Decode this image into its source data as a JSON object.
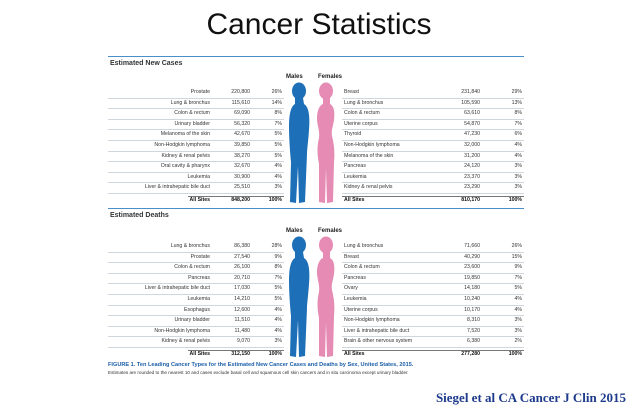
{
  "slide": {
    "title": "Cancer Statistics",
    "citation": "Siegel et al CA Cancer J Clin 2015"
  },
  "colors": {
    "male": "#1d6fb8",
    "female": "#e58bb4",
    "rule": "#4b8fc9",
    "caption": "#1b5ea8"
  },
  "icons": {
    "male_figure": "male-silhouette-icon",
    "female_figure": "female-silhouette-icon"
  },
  "labels": {
    "males": "Males",
    "females": "Females"
  },
  "new_cases": {
    "heading": "Estimated New Cases",
    "males": [
      [
        "Prostate",
        "220,800",
        "26%"
      ],
      [
        "Lung & bronchus",
        "115,610",
        "14%"
      ],
      [
        "Colon & rectum",
        "69,090",
        "8%"
      ],
      [
        "Urinary bladder",
        "56,320",
        "7%"
      ],
      [
        "Melanoma of the skin",
        "42,670",
        "5%"
      ],
      [
        "Non-Hodgkin lymphoma",
        "39,850",
        "5%"
      ],
      [
        "Kidney & renal pelvis",
        "38,270",
        "5%"
      ],
      [
        "Oral cavity & pharynx",
        "32,670",
        "4%"
      ],
      [
        "Leukemia",
        "30,900",
        "4%"
      ],
      [
        "Liver & intrahepatic bile duct",
        "25,510",
        "3%"
      ]
    ],
    "males_total": [
      "All Sites",
      "848,200",
      "100%"
    ],
    "females": [
      [
        "Breast",
        "231,840",
        "29%"
      ],
      [
        "Lung & bronchus",
        "105,590",
        "13%"
      ],
      [
        "Colon & rectum",
        "63,610",
        "8%"
      ],
      [
        "Uterine corpus",
        "54,870",
        "7%"
      ],
      [
        "Thyroid",
        "47,230",
        "6%"
      ],
      [
        "Non-Hodgkin lymphoma",
        "32,000",
        "4%"
      ],
      [
        "Melanoma of the skin",
        "31,200",
        "4%"
      ],
      [
        "Pancreas",
        "24,120",
        "3%"
      ],
      [
        "Leukemia",
        "23,370",
        "3%"
      ],
      [
        "Kidney & renal pelvis",
        "23,290",
        "3%"
      ]
    ],
    "females_total": [
      "All Sites",
      "810,170",
      "100%"
    ]
  },
  "deaths": {
    "heading": "Estimated Deaths",
    "males": [
      [
        "Lung & bronchus",
        "86,380",
        "28%"
      ],
      [
        "Prostate",
        "27,540",
        "9%"
      ],
      [
        "Colon & rectum",
        "26,100",
        "8%"
      ],
      [
        "Pancreas",
        "20,710",
        "7%"
      ],
      [
        "Liver & intrahepatic bile duct",
        "17,030",
        "5%"
      ],
      [
        "Leukemia",
        "14,210",
        "5%"
      ],
      [
        "Esophagus",
        "12,600",
        "4%"
      ],
      [
        "Urinary bladder",
        "11,510",
        "4%"
      ],
      [
        "Non-Hodgkin lymphoma",
        "11,480",
        "4%"
      ],
      [
        "Kidney & renal pelvis",
        "9,070",
        "3%"
      ]
    ],
    "males_total": [
      "All Sites",
      "312,150",
      "100%"
    ],
    "females": [
      [
        "Lung & bronchus",
        "71,660",
        "26%"
      ],
      [
        "Breast",
        "40,290",
        "15%"
      ],
      [
        "Colon & rectum",
        "23,600",
        "9%"
      ],
      [
        "Pancreas",
        "19,850",
        "7%"
      ],
      [
        "Ovary",
        "14,180",
        "5%"
      ],
      [
        "Leukemia",
        "10,240",
        "4%"
      ],
      [
        "Uterine corpus",
        "10,170",
        "4%"
      ],
      [
        "Non-Hodgkin lymphoma",
        "8,310",
        "3%"
      ],
      [
        "Liver & intrahepatic bile duct",
        "7,520",
        "3%"
      ],
      [
        "Brain & other nervous system",
        "6,380",
        "2%"
      ]
    ],
    "females_total": [
      "All Sites",
      "277,280",
      "100%"
    ]
  },
  "caption": {
    "figure": "FIGURE 1. Ten Leading Cancer Types for the Estimated New Cancer Cases and Deaths by Sex, United States, 2015.",
    "note": "Estimates are rounded to the nearest 10 and cases exclude basal cell and squamous cell skin cancers and in situ carcinoma except urinary bladder."
  }
}
